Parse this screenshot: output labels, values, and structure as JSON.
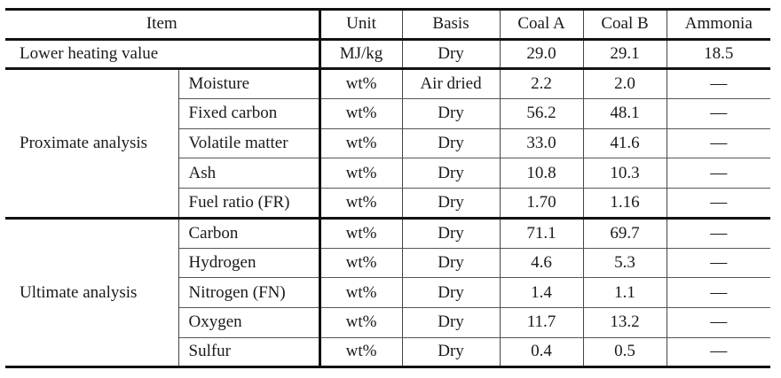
{
  "table": {
    "headers": {
      "item": "Item",
      "unit": "Unit",
      "basis": "Basis",
      "coal_a": "Coal A",
      "coal_b": "Coal B",
      "ammonia": "Ammonia"
    },
    "lhv": {
      "label": "Lower heating value",
      "unit": "MJ/kg",
      "basis": "Dry",
      "coal_a": "29.0",
      "coal_b": "29.1",
      "ammonia": "18.5"
    },
    "groups": [
      {
        "label": "Proximate analysis",
        "rows": [
          {
            "item": "Moisture",
            "unit": "wt%",
            "basis": "Air dried",
            "coal_a": "2.2",
            "coal_b": "2.0",
            "ammonia": "—"
          },
          {
            "item": "Fixed carbon",
            "unit": "wt%",
            "basis": "Dry",
            "coal_a": "56.2",
            "coal_b": "48.1",
            "ammonia": "—"
          },
          {
            "item": "Volatile matter",
            "unit": "wt%",
            "basis": "Dry",
            "coal_a": "33.0",
            "coal_b": "41.6",
            "ammonia": "—"
          },
          {
            "item": "Ash",
            "unit": "wt%",
            "basis": "Dry",
            "coal_a": "10.8",
            "coal_b": "10.3",
            "ammonia": "—"
          },
          {
            "item": "Fuel ratio (FR)",
            "unit": "wt%",
            "basis": "Dry",
            "coal_a": "1.70",
            "coal_b": "1.16",
            "ammonia": "—"
          }
        ]
      },
      {
        "label": "Ultimate analysis",
        "rows": [
          {
            "item": "Carbon",
            "unit": "wt%",
            "basis": "Dry",
            "coal_a": "71.1",
            "coal_b": "69.7",
            "ammonia": "—"
          },
          {
            "item": "Hydrogen",
            "unit": "wt%",
            "basis": "Dry",
            "coal_a": "4.6",
            "coal_b": "5.3",
            "ammonia": "—"
          },
          {
            "item": "Nitrogen (FN)",
            "unit": "wt%",
            "basis": "Dry",
            "coal_a": "1.4",
            "coal_b": "1.1",
            "ammonia": "—"
          },
          {
            "item": "Oxygen",
            "unit": "wt%",
            "basis": "Dry",
            "coal_a": "11.7",
            "coal_b": "13.2",
            "ammonia": "—"
          },
          {
            "item": "Sulfur",
            "unit": "wt%",
            "basis": "Dry",
            "coal_a": "0.4",
            "coal_b": "0.5",
            "ammonia": "—"
          }
        ]
      }
    ]
  }
}
